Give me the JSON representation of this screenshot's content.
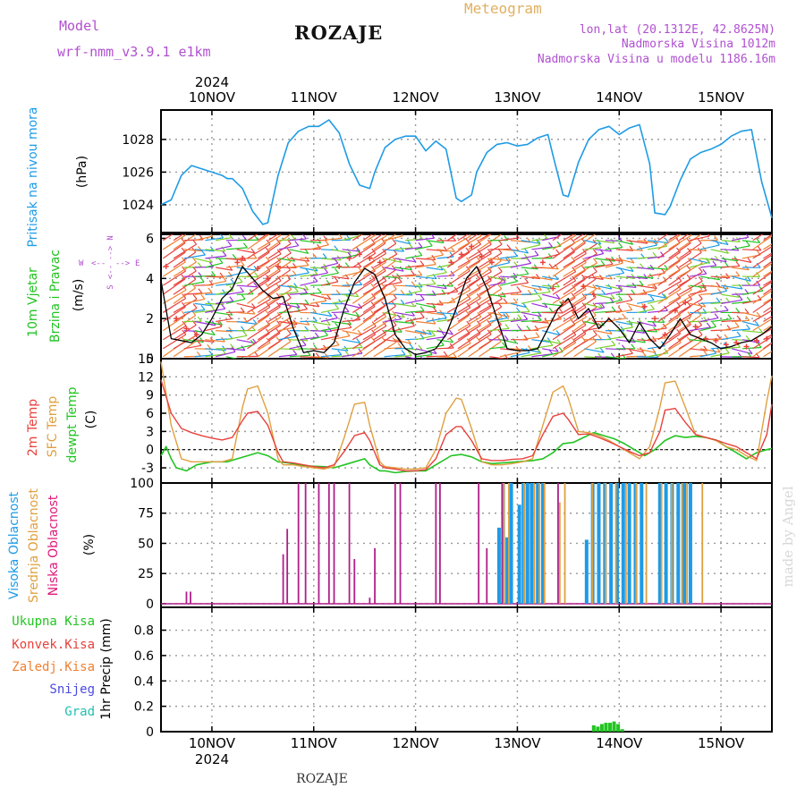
{
  "header": {
    "model_label": "Model",
    "model_name": "wrf-nmm_v3.9.1 e1km",
    "location": "ROZAJE",
    "product": "Meteogram",
    "lonlat": "lon,lat (20.1312E, 42.8625N)",
    "elevation": "Nadmorska Visina 1012m",
    "model_elevation": "Nadmorska Visina u modelu 1186.16m",
    "footer_location": "ROZAJE",
    "credit": "made by Angel"
  },
  "colors": {
    "pressure": "#1e9be6",
    "temp2m": "#e8413c",
    "sfc": "#e0a040",
    "dewpt": "#22c422",
    "high_cloud": "#1e9be6",
    "mid_cloud": "#e0a040",
    "low_cloud": "#b01f8a",
    "precip_total": "#22c422",
    "precip_conv": "#e8413c",
    "precip_frz": "#f08030",
    "snow": "#4a4ae0",
    "graupel": "#20c0b0",
    "purple_text": "#b050d0",
    "gold_text": "#e0b060"
  },
  "chart_data": [
    {
      "panel": "pressure",
      "type": "line",
      "ylabel": [
        "Pritisak na nivou mora",
        "(hPa)"
      ],
      "unit": "hPa",
      "year": "2024",
      "x_ticks": [
        "10NOV",
        "11NOV",
        "12NOV",
        "13NOV",
        "14NOV",
        "15NOV"
      ],
      "xlim_days": [
        9.5,
        15.5
      ],
      "ylim": [
        1022.3,
        1029.8
      ],
      "yticks": [
        1024,
        1026,
        1028
      ],
      "series": [
        {
          "x": [
            9.5,
            9.6,
            9.7,
            9.8,
            9.9,
            10.0,
            10.1,
            10.15,
            10.2,
            10.3,
            10.4,
            10.5,
            10.55,
            10.65,
            10.75,
            10.85,
            10.95,
            11.05,
            11.15,
            11.25,
            11.35,
            11.45,
            11.55,
            11.6,
            11.7,
            11.8,
            11.9,
            12.0,
            12.1,
            12.2,
            12.3,
            12.4,
            12.45,
            12.55,
            12.6,
            12.7,
            12.8,
            12.9,
            13.0,
            13.1,
            13.2,
            13.3,
            13.35,
            13.45,
            13.5,
            13.6,
            13.7,
            13.8,
            13.9,
            14.0,
            14.1,
            14.2,
            14.3,
            14.35,
            14.45,
            14.5,
            14.6,
            14.7,
            14.8,
            14.9,
            15.0,
            15.1,
            15.2,
            15.3,
            15.4,
            15.5
          ],
          "y": [
            1024.0,
            1024.3,
            1025.8,
            1026.4,
            1026.2,
            1026.0,
            1025.8,
            1025.6,
            1025.6,
            1025.0,
            1023.6,
            1022.8,
            1022.9,
            1025.8,
            1027.8,
            1028.5,
            1028.8,
            1028.8,
            1029.2,
            1028.4,
            1026.5,
            1025.2,
            1025.0,
            1026.0,
            1027.5,
            1028.0,
            1028.2,
            1028.2,
            1027.3,
            1027.9,
            1027.4,
            1024.4,
            1024.2,
            1024.6,
            1026.0,
            1027.2,
            1027.7,
            1027.8,
            1027.6,
            1027.7,
            1028.1,
            1028.3,
            1027.0,
            1024.6,
            1024.5,
            1026.6,
            1028.0,
            1028.6,
            1028.8,
            1028.3,
            1028.7,
            1028.9,
            1026.5,
            1023.5,
            1023.4,
            1023.9,
            1025.5,
            1026.8,
            1027.2,
            1027.4,
            1027.7,
            1028.2,
            1028.5,
            1028.6,
            1025.4,
            1023.2
          ]
        }
      ]
    },
    {
      "panel": "wind",
      "type": "line",
      "ylabel": [
        "10m Vjetar",
        "Brzina i Pravac",
        "(m/s)"
      ],
      "compass": {
        "north": "N",
        "south": "S",
        "west": "W",
        "east": "E",
        "west_arrow": "<--",
        "east_arrow": "-->"
      },
      "unit": "m/s",
      "ylim": [
        0,
        6.2
      ],
      "yticks": [
        0,
        2,
        4,
        6
      ],
      "series": [
        {
          "name": "speed",
          "color": "#000000",
          "x": [
            9.5,
            9.6,
            9.7,
            9.8,
            9.9,
            10.0,
            10.1,
            10.2,
            10.3,
            10.4,
            10.5,
            10.6,
            10.7,
            10.8,
            10.9,
            11.0,
            11.1,
            11.2,
            11.3,
            11.4,
            11.5,
            11.6,
            11.7,
            11.8,
            11.9,
            12.0,
            12.1,
            12.2,
            12.3,
            12.4,
            12.5,
            12.6,
            12.7,
            12.8,
            12.9,
            13.0,
            13.1,
            13.2,
            13.3,
            13.4,
            13.5,
            13.6,
            13.7,
            13.8,
            13.9,
            14.0,
            14.1,
            14.2,
            14.3,
            14.4,
            14.5,
            14.6,
            14.7,
            14.8,
            14.9,
            15.0,
            15.1,
            15.2,
            15.3,
            15.4,
            15.5
          ],
          "y": [
            3.9,
            1.0,
            0.9,
            0.8,
            1.2,
            2.0,
            3.0,
            3.5,
            4.6,
            4.0,
            3.4,
            3.0,
            3.1,
            1.5,
            0.3,
            0.4,
            0.3,
            0.8,
            2.5,
            3.8,
            4.5,
            4.2,
            3.0,
            1.2,
            0.5,
            0.2,
            0.3,
            0.5,
            1.2,
            2.5,
            4.0,
            4.6,
            3.5,
            2.0,
            0.5,
            0.4,
            0.4,
            0.5,
            1.5,
            2.5,
            3.0,
            2.0,
            2.5,
            1.5,
            2.0,
            1.5,
            0.8,
            1.8,
            1.0,
            0.5,
            1.2,
            2.0,
            1.2,
            1.0,
            0.8,
            0.5,
            0.6,
            0.8,
            0.9,
            1.2,
            1.6
          ]
        },
        {
          "name": "gust",
          "color": "#e8413c",
          "x": [
            9.55,
            9.65,
            9.75,
            9.85,
            10.25,
            10.3,
            10.45,
            10.55,
            10.65,
            11.25,
            11.35,
            11.45,
            11.55,
            11.65,
            12.35,
            12.45,
            12.55,
            12.65,
            12.75,
            13.25,
            13.35,
            13.45,
            13.55,
            13.65,
            13.75,
            14.25,
            14.35,
            14.45,
            14.55,
            14.65,
            14.75,
            14.85,
            14.95,
            15.05,
            15.15,
            15.25,
            15.35,
            15.45
          ],
          "y": [
            4.6,
            2.0,
            1.5,
            1.2,
            4.8,
            5.0,
            4.5,
            4.0,
            4.6,
            4.6,
            5.0,
            5.2,
            5.0,
            4.8,
            4.8,
            5.2,
            5.6,
            5.1,
            4.8,
            4.8,
            3.5,
            2.8,
            2.4,
            3.6,
            3.2,
            2.6,
            2.0,
            1.2,
            2.4,
            2.8,
            1.6,
            1.0,
            0.9,
            0.7,
            0.8,
            0.6,
            0.9,
            1.0
          ]
        }
      ]
    },
    {
      "panel": "temperature",
      "type": "line",
      "ylabel": [
        "2m Temp",
        "SFC Temp",
        "dewpt Temp",
        "(C)"
      ],
      "unit": "C",
      "ylim": [
        -5.5,
        15
      ],
      "yticks": [
        -3,
        0,
        3,
        6,
        9,
        12,
        15
      ],
      "series": [
        {
          "name": "2m Temp",
          "x": [
            9.5,
            9.6,
            9.7,
            9.8,
            9.9,
            10.0,
            10.1,
            10.2,
            10.3,
            10.35,
            10.45,
            10.55,
            10.65,
            10.7,
            10.8,
            10.9,
            11.0,
            11.1,
            11.2,
            11.3,
            11.4,
            11.5,
            11.55,
            11.65,
            11.7,
            11.8,
            11.9,
            12.0,
            12.1,
            12.2,
            12.3,
            12.4,
            12.45,
            12.55,
            12.65,
            12.75,
            12.85,
            12.95,
            13.05,
            13.15,
            13.25,
            13.35,
            13.45,
            13.5,
            13.6,
            13.7,
            13.8,
            13.9,
            14.0,
            14.1,
            14.2,
            14.3,
            14.4,
            14.45,
            14.55,
            14.65,
            14.75,
            14.85,
            14.95,
            15.05,
            15.15,
            15.25,
            15.35,
            15.45,
            15.5
          ],
          "y": [
            11.5,
            6.0,
            3.5,
            2.8,
            2.3,
            1.9,
            1.6,
            2.0,
            4.8,
            6.0,
            6.3,
            4.0,
            -0.5,
            -2.0,
            -2.2,
            -2.5,
            -2.8,
            -3.0,
            -2.5,
            -0.3,
            2.3,
            2.8,
            1.5,
            -2.5,
            -3.0,
            -3.2,
            -3.5,
            -3.5,
            -3.3,
            -1.5,
            2.5,
            3.8,
            3.8,
            1.5,
            -1.5,
            -1.8,
            -1.8,
            -1.6,
            -1.5,
            -1.0,
            2.5,
            5.5,
            6.0,
            5.0,
            2.5,
            2.6,
            2.0,
            1.3,
            0.5,
            -0.3,
            -1.0,
            -0.5,
            3.0,
            6.5,
            6.8,
            4.5,
            2.5,
            2.0,
            1.6,
            1.0,
            0.5,
            -0.5,
            -1.5,
            2.5,
            7.5
          ]
        },
        {
          "name": "SFC Temp",
          "x": [
            9.5,
            9.6,
            9.7,
            9.8,
            9.9,
            10.0,
            10.1,
            10.2,
            10.3,
            10.35,
            10.45,
            10.55,
            10.65,
            10.7,
            10.8,
            10.9,
            11.0,
            11.1,
            11.2,
            11.3,
            11.4,
            11.5,
            11.55,
            11.65,
            11.7,
            11.8,
            11.9,
            12.0,
            12.1,
            12.2,
            12.3,
            12.4,
            12.45,
            12.55,
            12.65,
            12.75,
            12.85,
            12.95,
            13.05,
            13.15,
            13.25,
            13.35,
            13.45,
            13.5,
            13.6,
            13.7,
            13.8,
            13.9,
            14.0,
            14.1,
            14.2,
            14.3,
            14.4,
            14.45,
            14.55,
            14.65,
            14.75,
            14.85,
            14.95,
            15.05,
            15.15,
            15.25,
            15.35,
            15.45,
            15.5
          ],
          "y": [
            14.5,
            4.0,
            -1.5,
            -2.0,
            -2.0,
            -2.0,
            -2.0,
            -1.5,
            7.0,
            10.0,
            10.5,
            6.0,
            -1.5,
            -2.5,
            -2.5,
            -2.8,
            -3.0,
            -3.2,
            -2.8,
            2.0,
            7.5,
            7.8,
            4.0,
            -2.0,
            -2.8,
            -3.0,
            -3.2,
            -3.2,
            -3.0,
            0.0,
            6.0,
            8.5,
            8.3,
            3.5,
            -2.0,
            -2.5,
            -2.5,
            -2.3,
            -2.0,
            -1.5,
            4.0,
            9.5,
            10.5,
            8.5,
            3.0,
            2.8,
            2.3,
            1.5,
            0.5,
            -0.5,
            -1.5,
            0.5,
            7.0,
            11.0,
            11.3,
            7.0,
            2.5,
            2.0,
            1.5,
            0.5,
            0.0,
            -1.0,
            -1.8,
            8.0,
            12.2
          ]
        },
        {
          "name": "dewpt Temp",
          "x": [
            9.5,
            9.55,
            9.6,
            9.65,
            9.75,
            9.85,
            10.0,
            10.15,
            10.25,
            10.35,
            10.45,
            10.55,
            10.65,
            10.75,
            10.85,
            10.95,
            11.1,
            11.2,
            11.3,
            11.4,
            11.5,
            11.55,
            11.65,
            11.7,
            11.8,
            11.9,
            12.0,
            12.1,
            12.25,
            12.35,
            12.45,
            12.55,
            12.65,
            12.75,
            12.85,
            13.0,
            13.15,
            13.25,
            13.35,
            13.45,
            13.55,
            13.65,
            13.75,
            13.85,
            13.95,
            14.05,
            14.15,
            14.25,
            14.35,
            14.45,
            14.55,
            14.65,
            14.75,
            14.85,
            14.95,
            15.05,
            15.15,
            15.25,
            15.35,
            15.45,
            15.5
          ],
          "y": [
            -1.0,
            0.5,
            -1.5,
            -3.0,
            -3.5,
            -2.5,
            -2.0,
            -2.0,
            -1.5,
            -1.0,
            -0.5,
            -1.0,
            -2.0,
            -2.2,
            -2.5,
            -2.7,
            -2.8,
            -3.0,
            -2.5,
            -2.0,
            -1.5,
            -2.5,
            -3.5,
            -3.5,
            -3.8,
            -3.6,
            -3.5,
            -3.5,
            -2.0,
            -1.0,
            -0.8,
            -1.2,
            -2.0,
            -2.3,
            -2.2,
            -2.0,
            -1.8,
            -1.5,
            -0.5,
            1.0,
            1.2,
            2.0,
            2.8,
            2.3,
            1.8,
            1.0,
            0.0,
            -1.0,
            0.0,
            1.5,
            2.3,
            2.0,
            2.2,
            2.0,
            1.6,
            0.5,
            -0.5,
            -1.5,
            -0.5,
            0.0,
            0.2
          ]
        }
      ]
    },
    {
      "panel": "cloud",
      "type": "bar",
      "ylabel": [
        "Visoka Oblacnost",
        "Srednja Oblacnost",
        "Niska Oblacnost",
        "(%)"
      ],
      "unit": "%",
      "ylim": [
        -3,
        100
      ],
      "yticks": [
        0,
        25,
        50,
        75,
        100
      ],
      "low_x": [
        9.75,
        9.79,
        10.7,
        10.74,
        10.85,
        10.92,
        11.05,
        11.15,
        11.2,
        11.35,
        11.4,
        11.55,
        11.6,
        11.8,
        11.85,
        12.2,
        12.24,
        12.62,
        12.7,
        12.85,
        13.4
      ],
      "low_y": [
        10,
        10,
        41,
        62,
        100,
        100,
        100,
        100,
        100,
        100,
        37,
        5,
        46,
        100,
        100,
        100,
        100,
        100,
        46,
        100,
        100
      ],
      "mid_x": [
        12.85,
        12.9,
        13.05,
        13.15,
        13.2,
        13.25,
        13.4,
        13.45,
        13.72,
        13.85,
        13.95,
        14.05,
        14.15,
        14.25,
        14.4,
        14.5,
        14.6,
        14.65,
        14.8
      ],
      "mid_y": [
        100,
        100,
        100,
        100,
        100,
        100,
        84,
        100,
        100,
        100,
        100,
        100,
        100,
        100,
        100,
        100,
        100,
        100,
        100
      ],
      "high_x": [
        12.82,
        12.86,
        12.9,
        12.94,
        13.02,
        13.06,
        13.1,
        13.14,
        13.2,
        13.25,
        13.68,
        13.74,
        13.8,
        13.86,
        13.92,
        13.98,
        14.04,
        14.1,
        14.16,
        14.22,
        14.4,
        14.46,
        14.52,
        14.58,
        14.64,
        14.7
      ],
      "high_y": [
        63,
        100,
        55,
        100,
        82,
        100,
        100,
        100,
        100,
        100,
        53,
        100,
        100,
        100,
        100,
        100,
        100,
        100,
        100,
        100,
        100,
        100,
        100,
        100,
        100,
        100
      ]
    },
    {
      "panel": "precip",
      "type": "bar",
      "ylabel": [
        "1hr Precip (mm)"
      ],
      "legend": [
        "Ukupna Kisa",
        "Konvek.Kisa",
        "Zaledj.Kisa",
        "Snijeg",
        "Grad"
      ],
      "unit": "mm",
      "ylim": [
        0,
        0.98
      ],
      "yticks": [
        0,
        0.2,
        0.4,
        0.6,
        0.8
      ],
      "x": [
        13.75,
        13.79,
        13.83,
        13.87,
        13.91,
        13.95,
        13.99,
        14.03
      ],
      "y": [
        0.05,
        0.04,
        0.06,
        0.07,
        0.07,
        0.08,
        0.06,
        0.02
      ]
    }
  ]
}
